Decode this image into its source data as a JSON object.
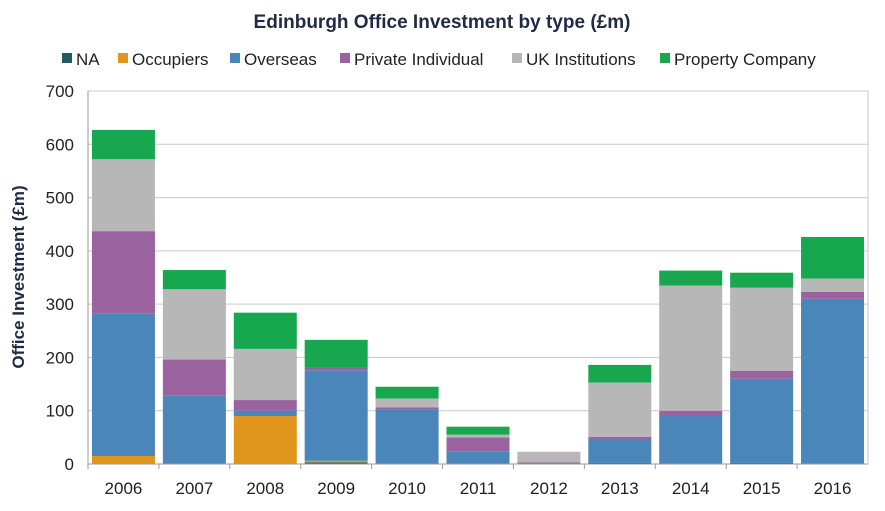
{
  "chart_data": {
    "type": "bar",
    "stacked": true,
    "title": "Edinburgh Office Investment by type (£m)",
    "xlabel": "",
    "ylabel": "Office Investment (£m)",
    "ylim": [
      0,
      700
    ],
    "yticks": [
      0,
      100,
      200,
      300,
      400,
      500,
      600,
      700
    ],
    "grid": true,
    "legend_position": "top",
    "categories": [
      "2006",
      "2007",
      "2008",
      "2009",
      "2010",
      "2011",
      "2012",
      "2013",
      "2014",
      "2015",
      "2016"
    ],
    "series": [
      {
        "name": "NA",
        "color": "#1f5c63",
        "values": [
          0,
          0,
          0,
          3,
          0,
          0,
          0,
          2,
          0,
          2,
          0
        ]
      },
      {
        "name": "Occupiers",
        "color": "#e0961b",
        "values": [
          15,
          0,
          90,
          3,
          0,
          0,
          0,
          0,
          0,
          0,
          0
        ]
      },
      {
        "name": "Overseas",
        "color": "#4a86b9",
        "values": [
          267,
          128,
          10,
          170,
          103,
          24,
          0,
          44,
          90,
          158,
          310
        ]
      },
      {
        "name": "Private Individual",
        "color": "#9a63a0",
        "values": [
          155,
          68,
          20,
          5,
          3,
          26,
          3,
          5,
          10,
          15,
          13
        ]
      },
      {
        "name": "UK Institutions",
        "color": "#b7b7b7",
        "values": [
          135,
          132,
          96,
          0,
          17,
          5,
          20,
          102,
          235,
          156,
          25
        ]
      },
      {
        "name": "Property Company",
        "color": "#17a84f",
        "values": [
          55,
          36,
          68,
          52,
          22,
          15,
          0,
          33,
          28,
          28,
          78
        ]
      }
    ]
  }
}
